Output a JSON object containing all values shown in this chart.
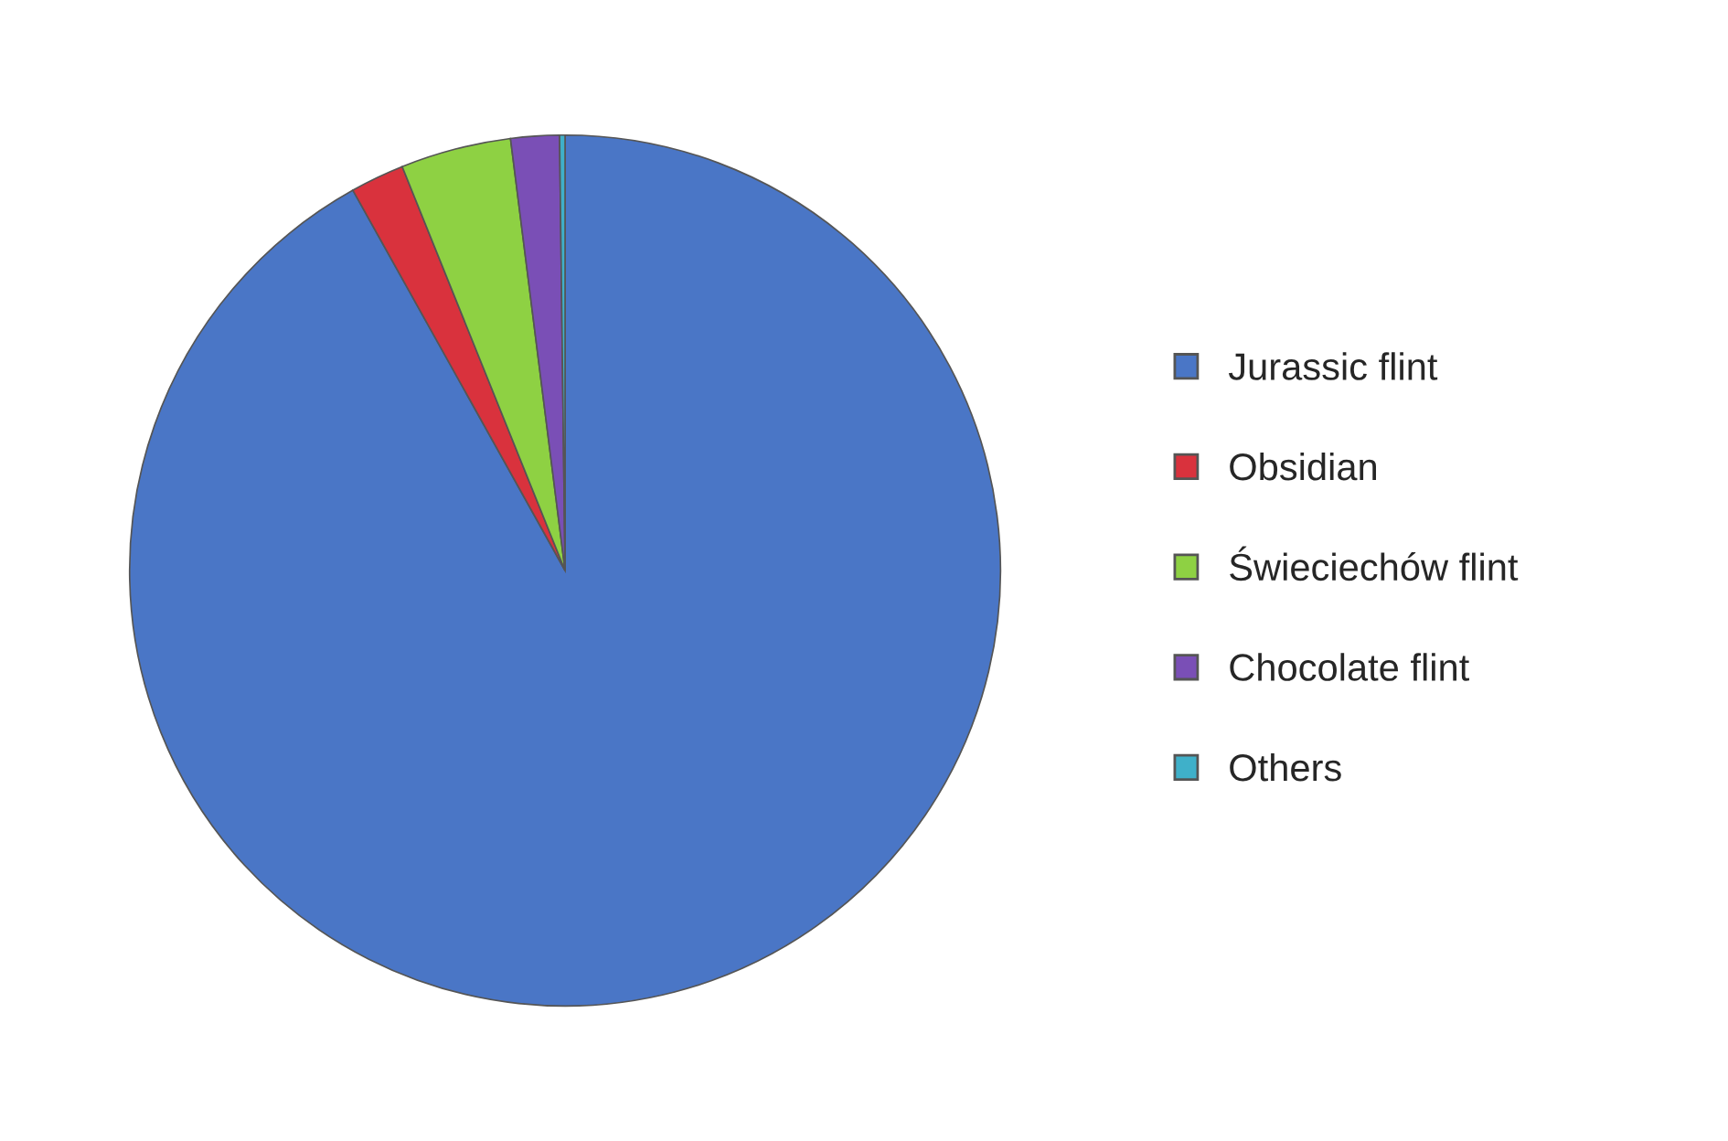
{
  "chart_data": {
    "type": "pie",
    "categories": [
      "Jurassic flint",
      "Obsidian",
      "Świeciechów flint",
      "Chocolate flint",
      "Others"
    ],
    "values": [
      91.9,
      2.0,
      4.1,
      1.8,
      0.2
    ],
    "colors": [
      "#4a76c6",
      "#d9323d",
      "#8ed143",
      "#7a4fb6",
      "#3fb0c9"
    ],
    "legend": "right"
  }
}
